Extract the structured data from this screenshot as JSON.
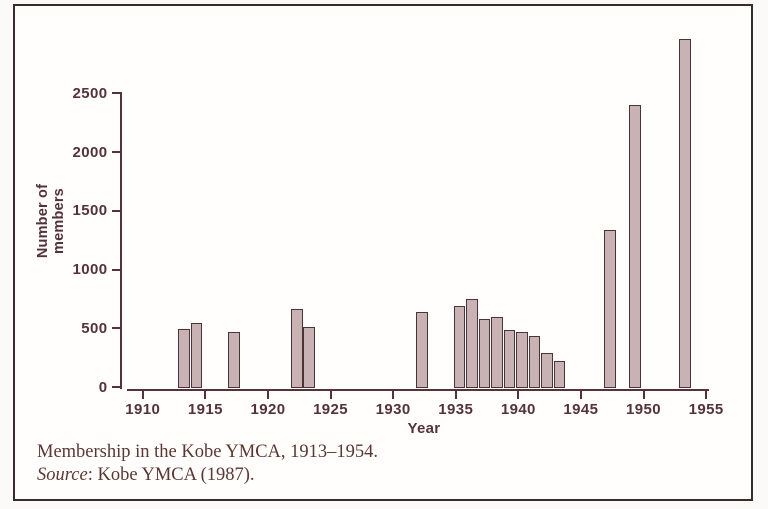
{
  "figure": {
    "caption_line1": "Membership in the Kobe YMCA, 1913–1954.",
    "caption_source_label": "Source",
    "caption_source_rest": ": Kobe YMCA (1987)."
  },
  "chart_data": {
    "type": "bar",
    "title": "",
    "xlabel": "Year",
    "ylabel": "Number of members",
    "categories": [
      1913,
      1914,
      1917,
      1922,
      1923,
      1932,
      1935,
      1936,
      1937,
      1938,
      1939,
      1940,
      1941,
      1942,
      1943,
      1947,
      1949,
      1953
    ],
    "values": [
      490,
      545,
      465,
      660,
      510,
      640,
      690,
      745,
      575,
      595,
      485,
      470,
      430,
      290,
      220,
      1340,
      2400,
      2960
    ],
    "x_ticks": [
      1910,
      1915,
      1920,
      1925,
      1930,
      1935,
      1940,
      1945,
      1950,
      1955
    ],
    "y_ticks": [
      0,
      500,
      1000,
      1500,
      2000,
      2500
    ],
    "xlim": [
      1910,
      1955
    ],
    "ylim": [
      0,
      2500
    ],
    "grid": false,
    "legend": "none",
    "bar_fill_color": "#c9b2b3",
    "bar_border_color": "#4d3337",
    "axis_color": "#533339"
  }
}
